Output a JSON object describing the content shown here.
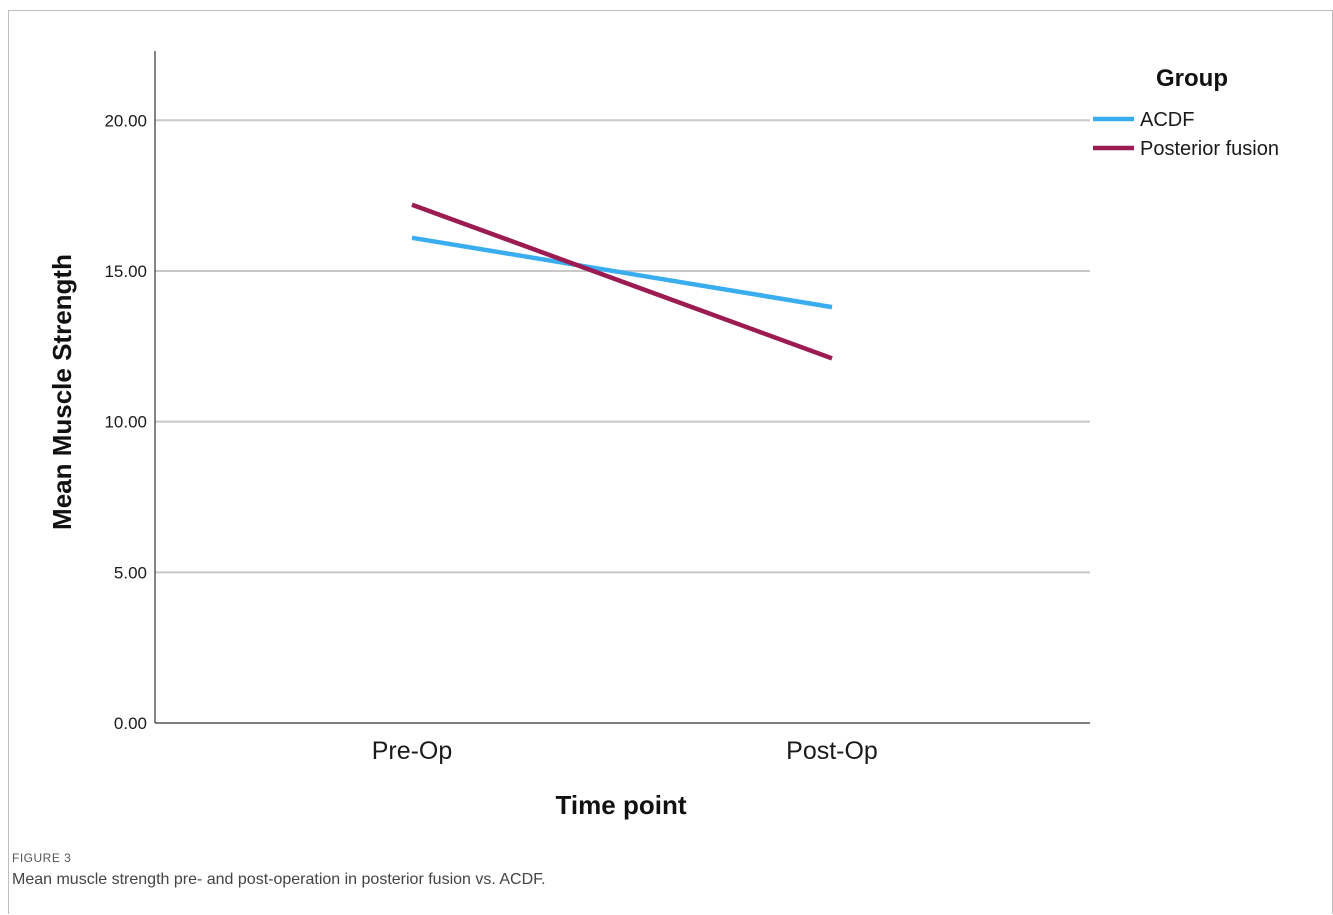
{
  "chart_data": {
    "type": "line",
    "categories": [
      "Pre-Op",
      "Post-Op"
    ],
    "series": [
      {
        "name": "ACDF",
        "values": [
          16.1,
          13.8
        ],
        "color": "#3aadf0"
      },
      {
        "name": "Posterior fusion",
        "values": [
          17.2,
          12.1
        ],
        "color": "#9b1b52"
      }
    ],
    "xlabel": "Time point",
    "ylabel": "Mean Muscle Strength",
    "ylim": [
      0,
      22.3
    ],
    "yticks": [
      0,
      5,
      10,
      15,
      20
    ],
    "ytick_labels": [
      "0.00",
      "5.00",
      "10.00",
      "15.00",
      "20.00"
    ],
    "grid": true,
    "legend": {
      "title": "Group",
      "position": "right"
    }
  },
  "figure": {
    "label": "FIGURE 3",
    "caption": "Mean muscle strength pre- and post-operation in posterior fusion vs. ACDF."
  }
}
